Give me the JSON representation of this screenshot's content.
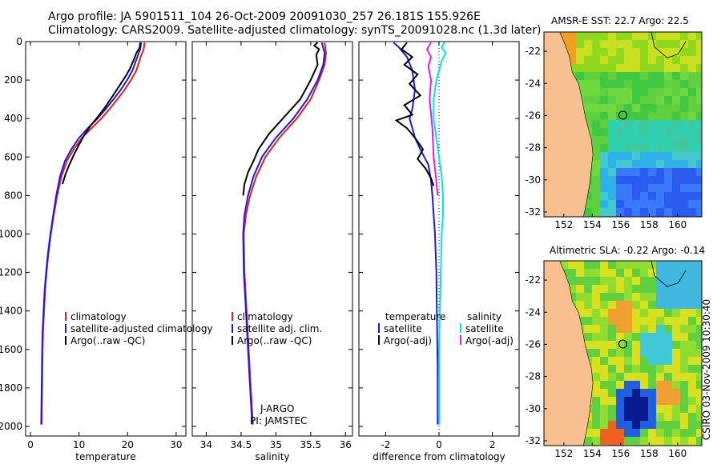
{
  "header": {
    "line1": "Argo profile: JA 5901511_104 26-Oct-2009 20091030_257 26.181S 155.926E",
    "line2": "Climatology: CARS2009. Satellite-adjusted climatology: synTS_20091028.nc (1.3d later)"
  },
  "footer": {
    "credit": "CSIRO 03-Nov-2009 10:30:40",
    "annotation_line1": "J-ARGO",
    "annotation_line2": "PI: JAMSTEC"
  },
  "colors": {
    "climatology": "#e02020",
    "satellite": "#1a1ae0",
    "argo": "#000000",
    "satellite_salinity": "#00e5e5",
    "argo_salinity": "#e020e0",
    "land": "#f8c090",
    "marker": "#000000"
  },
  "chart_data": [
    {
      "id": "temperature",
      "type": "line",
      "xlabel": "temperature",
      "xlim": [
        -1,
        32
      ],
      "ylim": [
        2050,
        0
      ],
      "xticks": [
        0,
        10,
        20,
        30
      ],
      "xtick_labels": [
        "0",
        "10",
        "20",
        "30"
      ],
      "yticks": [
        0,
        200,
        400,
        600,
        800,
        1000,
        1200,
        1400,
        1600,
        1800,
        2000
      ],
      "ytick_labels": [
        "0",
        "200",
        "400",
        "600",
        "800",
        "1000",
        "1200",
        "1400",
        "1600",
        "1800",
        "2000"
      ],
      "legend": [
        "climatology",
        "satellite-adjusted climatology",
        "Argo(..raw -QC)"
      ],
      "series": [
        {
          "name": "climatology",
          "color_key": "climatology",
          "x": [
            23.5,
            23.3,
            22.7,
            21.8,
            20.7,
            19.4,
            17.9,
            16.3,
            14.6,
            12.6,
            10.6,
            8.9,
            7.5,
            6.4,
            5.5,
            4.8,
            4.2,
            3.7,
            3.3,
            3.0,
            2.8,
            2.6,
            2.5,
            2.4,
            2.3
          ],
          "depth": [
            5,
            40,
            80,
            150,
            200,
            250,
            300,
            350,
            400,
            450,
            500,
            560,
            620,
            700,
            800,
            900,
            1000,
            1100,
            1200,
            1300,
            1400,
            1500,
            1600,
            1800,
            1990
          ]
        },
        {
          "name": "satellite-adjusted climatology",
          "color_key": "satellite",
          "x": [
            22.8,
            22.6,
            22.0,
            21.0,
            19.9,
            18.6,
            17.1,
            15.5,
            13.8,
            11.8,
            10.0,
            8.4,
            7.1,
            6.1,
            5.3,
            4.7,
            4.1,
            3.6,
            3.2,
            2.9,
            2.7,
            2.5,
            2.4,
            2.3,
            2.2
          ],
          "depth": [
            5,
            40,
            80,
            150,
            200,
            250,
            300,
            350,
            400,
            450,
            500,
            560,
            620,
            700,
            800,
            900,
            1000,
            1100,
            1200,
            1300,
            1400,
            1500,
            1600,
            1800,
            1990
          ]
        },
        {
          "name": "Argo(..raw -QC)",
          "color_key": "argo",
          "x": [
            22.6,
            22.5,
            21.8,
            21.2,
            20.5,
            19.6,
            18.3,
            17.0,
            15.4,
            13.9,
            12.3,
            11.0,
            9.9,
            8.9,
            8.0,
            7.2,
            6.6
          ],
          "depth": [
            5,
            30,
            60,
            100,
            140,
            180,
            230,
            280,
            340,
            390,
            440,
            490,
            540,
            590,
            640,
            690,
            740
          ]
        }
      ]
    },
    {
      "id": "salinity",
      "type": "line",
      "xlabel": "salinity",
      "xlim": [
        33.8,
        36.1
      ],
      "ylim": [
        2050,
        0
      ],
      "xticks": [
        34,
        34.5,
        35,
        35.5,
        36
      ],
      "xtick_labels": [
        "34",
        "34.5",
        "35",
        "35.5",
        "36"
      ],
      "legend": [
        "climatology",
        "satellite adj. clim.",
        "Argo(..raw -QC)"
      ],
      "series": [
        {
          "name": "climatology",
          "color_key": "climatology",
          "x": [
            35.7,
            35.72,
            35.7,
            35.62,
            35.5,
            35.3,
            35.05,
            34.85,
            34.72,
            34.63,
            34.57,
            34.54,
            34.55,
            34.58,
            34.61,
            34.64,
            34.67
          ],
          "depth": [
            5,
            60,
            120,
            200,
            300,
            400,
            500,
            600,
            700,
            800,
            900,
            1000,
            1200,
            1400,
            1600,
            1800,
            1990
          ]
        },
        {
          "name": "satellite adj. clim.",
          "color_key": "satellite",
          "x": [
            35.66,
            35.7,
            35.68,
            35.6,
            35.45,
            35.25,
            35.0,
            34.8,
            34.68,
            34.6,
            34.55,
            34.53,
            34.54,
            34.57,
            34.6,
            34.63,
            34.66
          ],
          "depth": [
            5,
            60,
            120,
            200,
            300,
            400,
            500,
            600,
            700,
            800,
            900,
            1000,
            1200,
            1400,
            1600,
            1800,
            1990
          ]
        },
        {
          "name": "Argo(..raw -QC)",
          "color_key": "argo",
          "x": [
            35.6,
            35.55,
            35.62,
            35.58,
            35.6,
            35.5,
            35.35,
            35.1,
            34.9,
            34.75,
            34.68,
            34.6,
            34.55,
            34.53
          ],
          "depth": [
            5,
            20,
            40,
            70,
            120,
            200,
            300,
            400,
            480,
            560,
            620,
            680,
            740,
            800
          ]
        }
      ]
    },
    {
      "id": "difference",
      "type": "line",
      "xlabel": "difference from climatology",
      "xlim": [
        -3,
        3
      ],
      "ylim": [
        2050,
        0
      ],
      "xticks": [
        -2,
        0,
        2
      ],
      "xtick_labels": [
        "-2",
        "0",
        "2"
      ],
      "legend_groups": [
        {
          "heading": "temperature",
          "items": [
            "satellite",
            "Argo(-adj)"
          ]
        },
        {
          "heading": "salinity",
          "items": [
            "satellite",
            "Argo(-adj)"
          ]
        }
      ],
      "series": [
        {
          "name": "temperature satellite",
          "color_key": "satellite",
          "x": [
            -1.7,
            -1.5,
            -1.2,
            -1.0,
            -0.9,
            -1.0,
            -1.1,
            -1.0,
            -0.9,
            -0.7,
            -0.4,
            -0.3,
            -0.25,
            -0.2,
            -0.15,
            -0.1,
            -0.08,
            -0.05,
            -0.05
          ],
          "depth": [
            5,
            30,
            80,
            150,
            250,
            350,
            400,
            450,
            500,
            560,
            640,
            720,
            800,
            900,
            1000,
            1200,
            1400,
            1700,
            1990
          ]
        },
        {
          "name": "temperature Argo(-adj)",
          "color_key": "argo",
          "x": [
            -1.2,
            -1.4,
            -1.0,
            -1.3,
            -0.8,
            -1.1,
            -0.7,
            -1.3,
            -1.0,
            -1.6,
            -1.2,
            -0.9,
            -0.6,
            -0.8,
            -0.5,
            -0.3,
            -0.2
          ],
          "depth": [
            5,
            40,
            80,
            120,
            170,
            220,
            280,
            330,
            380,
            410,
            450,
            500,
            560,
            610,
            660,
            710,
            750
          ]
        },
        {
          "name": "salinity satellite",
          "color_key": "satellite_salinity",
          "x": [
            0.2,
            0.1,
            0.25,
            0.1,
            -0.1,
            -0.2,
            -0.2,
            -0.1,
            0.0,
            0.1,
            0.15,
            0.15,
            0.1,
            0.05,
            0.0,
            0.0
          ],
          "depth": [
            5,
            30,
            60,
            100,
            200,
            300,
            400,
            500,
            600,
            700,
            800,
            900,
            1000,
            1300,
            1600,
            1990
          ]
        },
        {
          "name": "salinity Argo(-adj)",
          "color_key": "argo_salinity",
          "x": [
            -0.3,
            -0.45,
            -0.3,
            -0.4,
            -0.3,
            -0.35,
            -0.25,
            -0.2,
            -0.12,
            -0.05
          ],
          "depth": [
            5,
            40,
            80,
            130,
            200,
            300,
            450,
            600,
            700,
            800
          ]
        }
      ]
    }
  ],
  "maps": [
    {
      "id": "sst",
      "title": "AMSR-E SST: 22.7 Argo: 22.5",
      "xticks": [
        152,
        154,
        156,
        158,
        160
      ],
      "yticks": [
        -22,
        -24,
        -26,
        -28,
        -30,
        -32
      ]
    },
    {
      "id": "sla",
      "title": "Altimetric SLA: -0.22 Argo: -0.14",
      "xticks": [
        152,
        154,
        156,
        158,
        160
      ],
      "yticks": [
        -22,
        -24,
        -26,
        -28,
        -30,
        -32
      ]
    }
  ]
}
